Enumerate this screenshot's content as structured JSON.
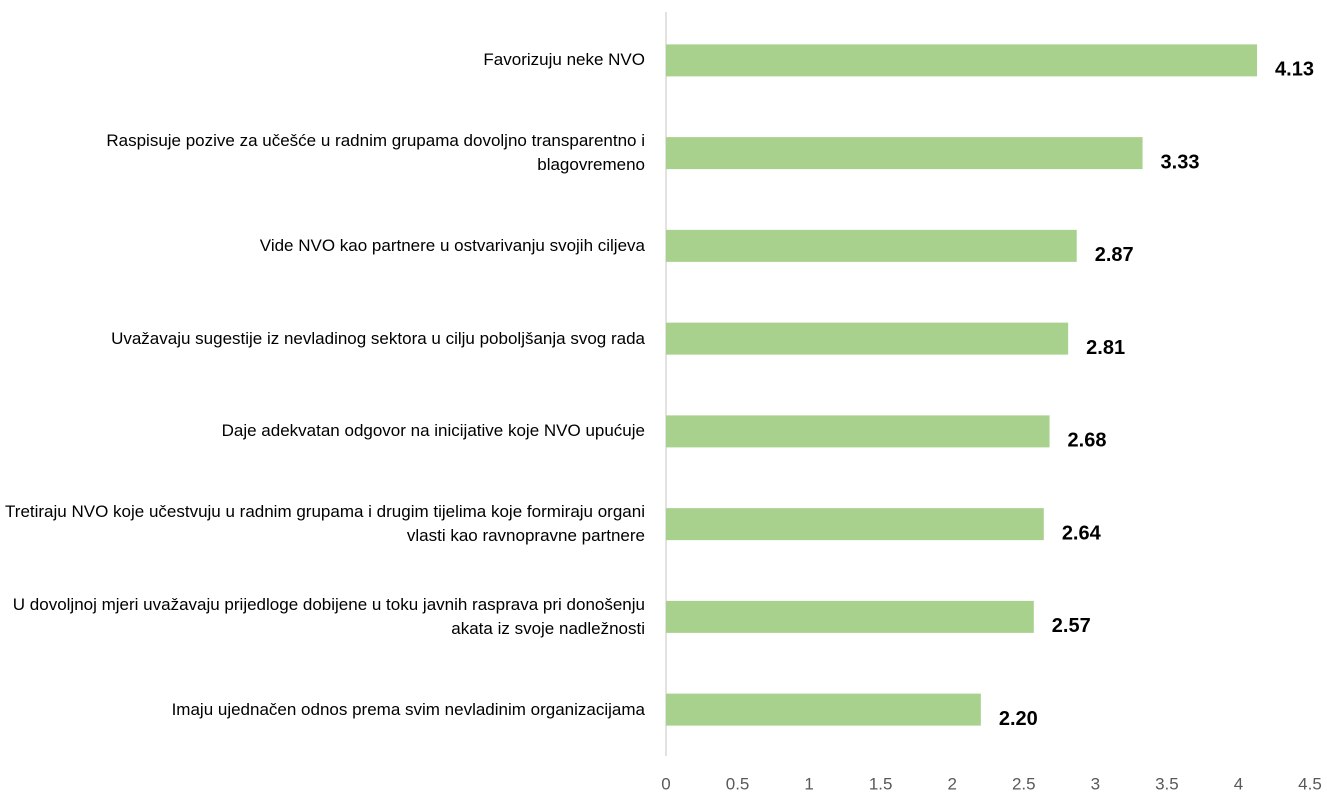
{
  "chart_data": {
    "type": "bar",
    "orientation": "horizontal",
    "categories": [
      "Favorizuju neke NVO",
      "Raspisuje pozive za učešće u radnim grupama dovoljno transparentno i blagovremeno",
      "Vide NVO kao partnere u ostvarivanju svojih ciljeva",
      "Uvažavaju sugestije iz nevladinog sektora u cilju poboljšanja svog rada",
      "Daje adekvatan odgovor na inicijative koje NVO upućuje",
      "Tretiraju NVO koje učestvuju u radnim grupama i drugim tijelima koje formiraju organi vlasti kao ravnopravne partnere",
      "U dovoljnoj mjeri uvažavaju prijedloge dobijene u toku javnih rasprava pri donošenju akata iz svoje nadležnosti",
      "Imaju ujednačen odnos prema svim nevladinim organizacijama"
    ],
    "values": [
      4.13,
      3.33,
      2.87,
      2.81,
      2.68,
      2.64,
      2.57,
      2.2
    ],
    "value_labels": [
      "4.13",
      "3.33",
      "2.87",
      "2.81",
      "2.68",
      "2.64",
      "2.57",
      "2.20"
    ],
    "color": "#a9d18e",
    "xlim": [
      0,
      4.5
    ],
    "xticks": [
      0,
      0.5,
      1,
      1.5,
      2,
      2.5,
      3,
      3.5,
      4,
      4.5
    ],
    "grid": false
  }
}
